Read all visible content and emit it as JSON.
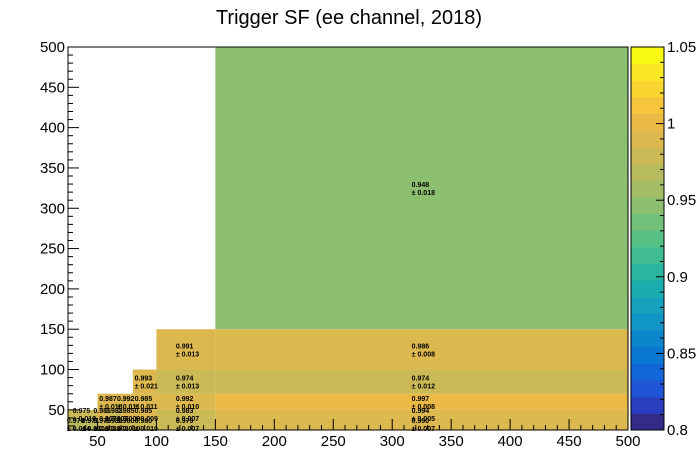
{
  "chart_data": {
    "type": "heatmap",
    "title": "Trigger SF (ee channel, 2018)",
    "xlabel": "",
    "ylabel": "",
    "xlim": [
      25,
      500
    ],
    "ylim": [
      25,
      500
    ],
    "zlim": [
      0.8,
      1.05
    ],
    "x_ticks": [
      50,
      100,
      150,
      200,
      250,
      300,
      350,
      400,
      450,
      500
    ],
    "y_ticks": [
      50,
      100,
      150,
      200,
      250,
      300,
      350,
      400,
      450,
      500
    ],
    "z_ticks": [
      0.8,
      0.85,
      0.9,
      0.95,
      1,
      1.05
    ],
    "z_tick_labels": [
      "0.8",
      "0.85",
      "0.9",
      "0.95",
      "1",
      "1.05"
    ],
    "palette": [
      "#352a87",
      "#2a3fc0",
      "#1f55d6",
      "#1267d8",
      "#0a77d3",
      "#0b86cd",
      "#1194c6",
      "#16a1bd",
      "#1bacb0",
      "#2ab5a2",
      "#3fbc93",
      "#57c084",
      "#72c07a",
      "#8cbf6f",
      "#a3bd66",
      "#b8bb5d",
      "#cbb955",
      "#dcb84e",
      "#eab946",
      "#f6c53c",
      "#f9d52f",
      "#f9e726",
      "#f9fa14"
    ],
    "x_edges": [
      25,
      40,
      50,
      60,
      70,
      80,
      100,
      150,
      500
    ],
    "y_edges": [
      25,
      40,
      50,
      60,
      70,
      80,
      100,
      150,
      500
    ],
    "cells": [
      {
        "x": [
          25,
          40
        ],
        "y": [
          25,
          40
        ],
        "value": 0.97,
        "label": "0.970",
        "error": "± 0.014"
      },
      {
        "x": [
          40,
          50
        ],
        "y": [
          25,
          40
        ],
        "value": 0.971,
        "label": "0.971",
        "error": "± 0.010"
      },
      {
        "x": [
          50,
          60
        ],
        "y": [
          25,
          40
        ],
        "value": 0.979,
        "label": "0.979",
        "error": "± 0.008"
      },
      {
        "x": [
          60,
          70
        ],
        "y": [
          25,
          40
        ],
        "value": 0.98,
        "label": "0.980",
        "error": "± 0.008"
      },
      {
        "x": [
          70,
          80
        ],
        "y": [
          25,
          40
        ],
        "value": 0.98,
        "label": "0.980",
        "error": "± 0.010"
      },
      {
        "x": [
          80,
          100
        ],
        "y": [
          25,
          40
        ],
        "value": 0.98,
        "label": "0.980",
        "error": "± 0.010"
      },
      {
        "x": [
          100,
          150
        ],
        "y": [
          25,
          40
        ],
        "value": 0.979,
        "label": "0.979",
        "error": "± 0.007"
      },
      {
        "x": [
          150,
          500
        ],
        "y": [
          25,
          40
        ],
        "value": 0.99,
        "label": "0.990",
        "error": "± 0.007"
      },
      {
        "x": [
          25,
          50
        ],
        "y": [
          40,
          50
        ],
        "value": 0.975,
        "label": "0.975",
        "error": "± 0.010"
      },
      {
        "x": [
          50,
          60
        ],
        "y": [
          40,
          50
        ],
        "value": 0.985,
        "label": "0.985",
        "error": "± 0.007"
      },
      {
        "x": [
          60,
          70
        ],
        "y": [
          40,
          50
        ],
        "value": 0.983,
        "label": "0.983",
        "error": "± 0.007"
      },
      {
        "x": [
          70,
          80
        ],
        "y": [
          40,
          50
        ],
        "value": 0.985,
        "label": "0.985",
        "error": "± 0.009"
      },
      {
        "x": [
          80,
          100
        ],
        "y": [
          40,
          50
        ],
        "value": 0.985,
        "label": "0.985",
        "error": "± 0.009"
      },
      {
        "x": [
          100,
          150
        ],
        "y": [
          40,
          50
        ],
        "value": 0.983,
        "label": "0.983",
        "error": "± 0.007"
      },
      {
        "x": [
          150,
          500
        ],
        "y": [
          40,
          50
        ],
        "value": 0.994,
        "label": "0.994",
        "error": "± 0.005"
      },
      {
        "x": [
          50,
          70
        ],
        "y": [
          50,
          70
        ],
        "value": 0.987,
        "label": "0.987",
        "error": "± 0.018"
      },
      {
        "x": [
          70,
          80
        ],
        "y": [
          50,
          70
        ],
        "value": 0.992,
        "label": "0.992",
        "error": "± 0.011"
      },
      {
        "x": [
          80,
          100
        ],
        "y": [
          50,
          70
        ],
        "value": 0.985,
        "label": "0.985",
        "error": "± 0.011"
      },
      {
        "x": [
          100,
          150
        ],
        "y": [
          50,
          70
        ],
        "value": 0.992,
        "label": "0.992",
        "error": "± 0.010"
      },
      {
        "x": [
          150,
          500
        ],
        "y": [
          50,
          70
        ],
        "value": 0.997,
        "label": "0.997",
        "error": "± 0.008"
      },
      {
        "x": [
          80,
          100
        ],
        "y": [
          70,
          100
        ],
        "value": 0.993,
        "label": "0.993",
        "error": "± 0.021"
      },
      {
        "x": [
          100,
          150
        ],
        "y": [
          70,
          100
        ],
        "value": 0.974,
        "label": "0.974",
        "error": "± 0.013"
      },
      {
        "x": [
          150,
          500
        ],
        "y": [
          70,
          100
        ],
        "value": 0.974,
        "label": "0.974",
        "error": "± 0.012"
      },
      {
        "x": [
          100,
          150
        ],
        "y": [
          100,
          150
        ],
        "value": 0.991,
        "label": "0.991",
        "error": "± 0.013"
      },
      {
        "x": [
          150,
          500
        ],
        "y": [
          100,
          150
        ],
        "value": 0.986,
        "label": "0.986",
        "error": "± 0.008"
      },
      {
        "x": [
          150,
          500
        ],
        "y": [
          150,
          500
        ],
        "value": 0.948,
        "label": "0.948",
        "error": "± 0.018"
      }
    ],
    "grid": false,
    "legend": "color-bar-right"
  }
}
